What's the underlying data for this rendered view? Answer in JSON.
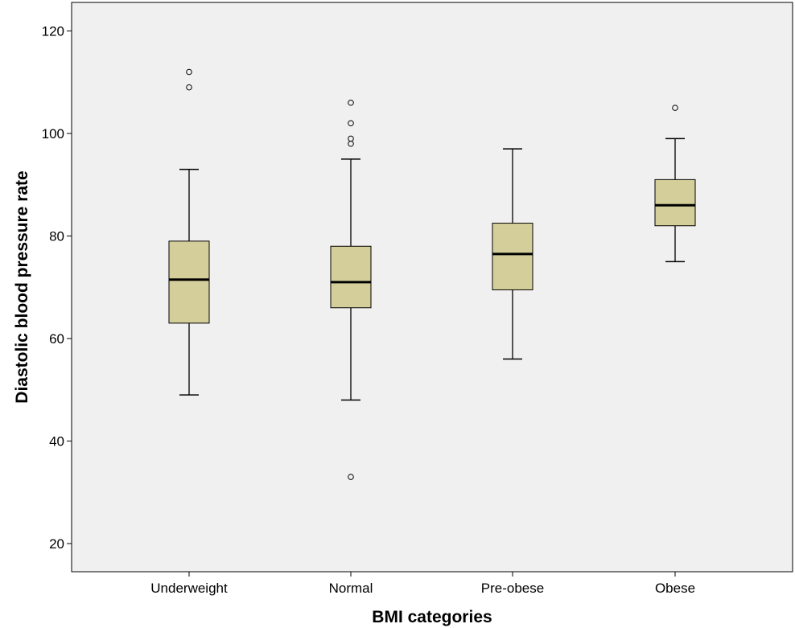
{
  "chart_data": {
    "type": "boxplot",
    "title": "",
    "xlabel": "BMI categories",
    "ylabel": "Diastolic blood pressure rate",
    "ylim": [
      15,
      126
    ],
    "yticks": [
      20,
      40,
      60,
      80,
      100,
      120
    ],
    "grid": false,
    "categories": [
      "Underweight",
      "Normal",
      "Pre-obese",
      "Obese"
    ],
    "boxes": [
      {
        "category": "Underweight",
        "whisker_low": 49,
        "q1": 63,
        "median": 71.5,
        "q3": 79,
        "whisker_high": 93,
        "outliers": [
          109,
          112
        ]
      },
      {
        "category": "Normal",
        "whisker_low": 48,
        "q1": 66,
        "median": 71,
        "q3": 78,
        "whisker_high": 95,
        "outliers": [
          33,
          98,
          99,
          102,
          106
        ]
      },
      {
        "category": "Pre-obese",
        "whisker_low": 56,
        "q1": 69.5,
        "median": 76.5,
        "q3": 82.5,
        "whisker_high": 97,
        "outliers": []
      },
      {
        "category": "Obese",
        "whisker_low": 75,
        "q1": 82,
        "median": 86,
        "q3": 91,
        "whisker_high": 99,
        "outliers": [
          105
        ]
      }
    ],
    "colors": {
      "plot_background": "#f0f0f0",
      "box_fill": "#d4cf9a",
      "line": "#000000"
    }
  }
}
